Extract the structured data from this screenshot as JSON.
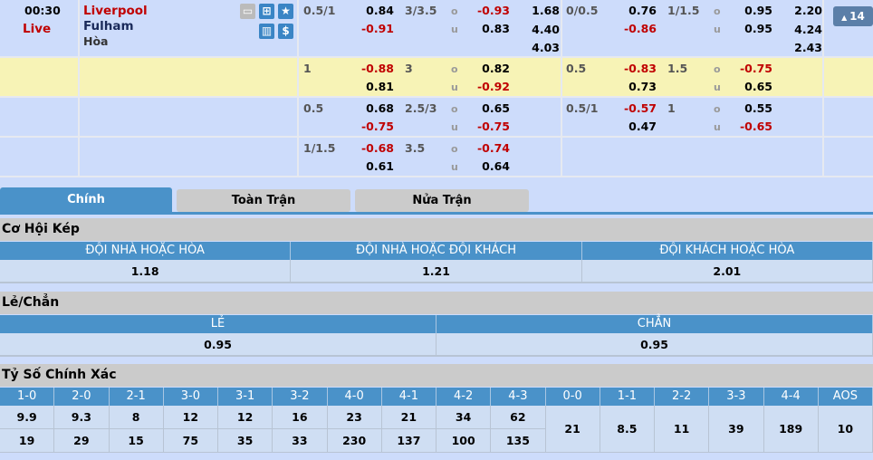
{
  "match": {
    "time": "00:30",
    "status": "Live",
    "home": "Liverpool",
    "away": "Fulham",
    "draw_label": "Hòa",
    "more_count": "14"
  },
  "icons": [
    "tv-icon",
    "field-icon",
    "star-icon",
    "stats-icon",
    "dollar-icon"
  ],
  "odds_rows": [
    {
      "bg": "#cddcfb",
      "ft": {
        "hcap": "0.5/1",
        "hc": [
          "0.84",
          "-0.91"
        ],
        "ou": "3/3.5",
        "ouv": [
          "-0.93",
          "0.83"
        ],
        "x12": [
          "1.68",
          "4.40",
          "4.03"
        ]
      },
      "ht": {
        "hcap": "0/0.5",
        "hc": [
          "0.76",
          "-0.86"
        ],
        "ou": "1/1.5",
        "ouv": [
          "0.95",
          "0.95"
        ],
        "x12": [
          "2.20",
          "4.24",
          "2.43"
        ]
      }
    },
    {
      "bg": "#f7f3b6",
      "ft": {
        "hcap": "1",
        "hc": [
          "-0.88",
          "0.81"
        ],
        "ou": "3",
        "ouv": [
          "0.82",
          "-0.92"
        ]
      },
      "ht": {
        "hcap": "0.5",
        "hc": [
          "-0.83",
          "0.73"
        ],
        "ou": "1.5",
        "ouv": [
          "-0.75",
          "0.65"
        ]
      }
    },
    {
      "bg": "#cddcfb",
      "ft": {
        "hcap": "0.5",
        "hc": [
          "0.68",
          "-0.75"
        ],
        "ou": "2.5/3",
        "ouv": [
          "0.65",
          "-0.75"
        ]
      },
      "ht": {
        "hcap": "0.5/1",
        "hc": [
          "-0.57",
          "0.47"
        ],
        "ou": "1",
        "ouv": [
          "0.55",
          "-0.65"
        ]
      }
    },
    {
      "bg": "#cddcfb",
      "ft": {
        "hcap": "1/1.5",
        "hc": [
          "-0.68",
          "0.61"
        ],
        "ou": "3.5",
        "ouv": [
          "-0.74",
          "0.64"
        ]
      }
    }
  ],
  "ou_labels": [
    "o",
    "u"
  ],
  "tabs": [
    "Chính",
    "Toàn Trận",
    "Nửa Trận"
  ],
  "double_chance": {
    "title": "Cơ Hội Kép",
    "headers": [
      "ĐỘI NHÀ HOẶC HÒA",
      "ĐỘI NHÀ HOẶC ĐỘI KHÁCH",
      "ĐỘI KHÁCH HOẶC HÒA"
    ],
    "values": [
      "1.18",
      "1.21",
      "2.01"
    ]
  },
  "odd_even": {
    "title": "Lẻ/Chẳn",
    "headers": [
      "LẺ",
      "CHẲN"
    ],
    "values": [
      "0.95",
      "0.95"
    ]
  },
  "correct_score": {
    "title": "Tỷ Số Chính Xác",
    "scores": [
      "1-0",
      "2-0",
      "2-1",
      "3-0",
      "3-1",
      "3-2",
      "4-0",
      "4-1",
      "4-2",
      "4-3"
    ],
    "home": [
      "9.9",
      "9.3",
      "8",
      "12",
      "12",
      "16",
      "23",
      "21",
      "34",
      "62"
    ],
    "away": [
      "19",
      "29",
      "15",
      "75",
      "35",
      "33",
      "230",
      "137",
      "100",
      "135"
    ],
    "draws": [
      "0-0",
      "1-1",
      "2-2",
      "3-3",
      "4-4",
      "AOS"
    ],
    "draw_values": [
      "21",
      "8.5",
      "11",
      "39",
      "189",
      "10"
    ]
  },
  "colors": {
    "negative": "#c00000",
    "accent": "#4a92c9",
    "highlight_row": "#f7f3b6"
  }
}
